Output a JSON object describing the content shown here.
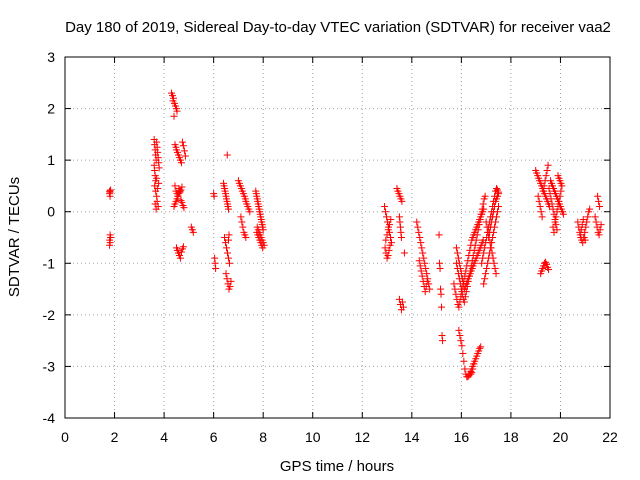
{
  "chart_data": {
    "type": "scatter",
    "title": "Day 180 of 2019, Sidereal Day-to-day VTEC variation (SDTVAR) for receiver vaa2",
    "xlabel": "GPS time / hours",
    "ylabel": "SDTVAR / TECUs",
    "xlim": [
      0,
      22
    ],
    "ylim": [
      -4,
      3
    ],
    "xticks": [
      "0",
      "2",
      "4",
      "6",
      "8",
      "10",
      "12",
      "14",
      "16",
      "18",
      "20",
      "22"
    ],
    "yticks": [
      "-4",
      "-3",
      "-2",
      "-1",
      "0",
      "1",
      "2",
      "3"
    ],
    "grid": true,
    "marker": "+",
    "series": [
      {
        "name": "SDTVAR",
        "color": "#ff0000",
        "x": [
          1.8,
          1.8,
          1.82,
          1.82,
          1.84,
          1.8,
          1.82,
          1.84,
          1.8,
          1.82,
          3.6,
          3.62,
          3.64,
          3.66,
          3.68,
          3.6,
          3.62,
          3.64,
          3.66,
          3.7,
          3.72,
          3.74,
          3.76,
          3.78,
          3.8,
          3.62,
          3.66,
          3.7,
          3.74,
          3.78,
          3.64,
          3.68,
          3.72,
          3.76,
          3.7,
          4.3,
          4.34,
          4.38,
          4.42,
          4.46,
          4.5,
          4.52,
          4.36,
          4.4,
          4.44,
          4.48,
          4.5,
          4.54,
          4.58,
          4.62,
          4.66,
          4.7,
          4.74,
          4.78,
          4.82,
          4.86,
          4.44,
          4.48,
          4.52,
          4.56,
          4.6,
          4.64,
          4.68,
          4.72,
          4.5,
          4.54,
          4.58,
          4.62,
          4.66,
          4.7,
          4.74,
          4.78,
          4.4,
          4.44,
          4.48,
          4.52,
          4.56,
          4.6,
          4.64,
          4.68,
          4.72,
          4.76,
          4.8,
          5.1,
          5.14,
          5.18,
          6.0,
          6.02,
          6.04,
          6.06,
          6.08,
          6.4,
          6.42,
          6.44,
          6.46,
          6.48,
          6.5,
          6.52,
          6.54,
          6.56,
          6.58,
          6.6,
          6.44,
          6.48,
          6.52,
          6.56,
          6.6,
          6.64,
          6.5,
          6.54,
          6.58,
          6.62,
          6.66,
          6.7,
          6.55,
          6.6,
          6.62,
          7.0,
          7.04,
          7.08,
          7.12,
          7.16,
          7.2,
          7.24,
          7.28,
          7.3,
          7.34,
          7.38,
          7.42,
          7.46,
          7.1,
          7.14,
          7.18,
          7.22,
          7.26,
          7.3,
          7.7,
          7.72,
          7.74,
          7.76,
          7.78,
          7.8,
          7.82,
          7.84,
          7.86,
          7.88,
          7.9,
          7.92,
          7.94,
          7.96,
          7.98,
          8.0,
          7.74,
          7.78,
          7.82,
          7.86,
          7.9,
          7.94,
          7.98,
          7.76,
          7.8,
          7.84,
          7.88,
          7.92,
          7.96,
          8.0,
          8.04,
          12.9,
          12.94,
          12.98,
          13.02,
          13.06,
          13.1,
          13.14,
          13.18,
          12.92,
          12.96,
          13.0,
          13.04,
          13.08,
          13.12,
          12.95,
          13.0,
          13.05,
          13.1,
          13.15,
          13.4,
          13.44,
          13.48,
          13.52,
          13.56,
          13.6,
          13.5,
          13.52,
          13.54,
          13.56,
          13.58,
          13.5,
          13.54,
          13.58,
          13.62,
          13.66,
          13.7,
          14.2,
          14.24,
          14.28,
          14.32,
          14.36,
          14.4,
          14.44,
          14.48,
          14.52,
          14.56,
          14.6,
          14.64,
          14.68,
          14.72,
          14.3,
          14.34,
          14.38,
          14.42,
          14.46,
          14.5,
          14.54,
          14.58,
          14.62,
          15.1,
          15.12,
          15.14,
          15.16,
          15.18,
          15.2,
          15.22,
          15.24,
          15.7,
          15.74,
          15.78,
          15.82,
          15.86,
          15.9,
          15.94,
          15.98,
          16.02,
          16.06,
          16.1,
          16.14,
          16.18,
          16.22,
          16.26,
          16.3,
          16.34,
          16.38,
          16.42,
          16.46,
          16.5,
          16.54,
          16.58,
          16.62,
          16.66,
          16.7,
          16.74,
          16.78,
          16.82,
          16.86,
          16.9,
          15.8,
          15.84,
          15.88,
          15.92,
          15.96,
          16.0,
          16.04,
          16.08,
          16.12,
          16.16,
          16.2,
          16.24,
          16.28,
          16.32,
          16.36,
          16.4,
          16.44,
          16.48,
          16.52,
          16.56,
          16.6,
          16.64,
          16.68,
          16.72,
          16.76,
          16.8,
          16.84,
          16.88,
          16.92,
          16.96,
          15.8,
          15.84,
          15.88,
          15.92,
          15.96,
          16.0,
          16.04,
          16.08,
          16.12,
          16.16,
          16.2,
          16.24,
          16.28,
          16.32,
          16.36,
          16.4,
          16.44,
          16.48,
          16.52,
          16.56,
          16.6,
          16.64,
          16.68,
          16.72,
          16.76,
          16.8,
          16.84,
          16.88,
          15.9,
          15.94,
          15.98,
          16.02,
          16.06,
          16.1,
          16.14,
          16.18,
          16.22,
          16.26,
          16.3,
          16.34,
          16.38,
          16.42,
          16.46,
          16.5,
          16.3,
          16.34,
          16.38,
          16.42,
          16.46,
          16.5,
          16.54,
          16.58,
          16.62,
          16.66,
          16.7,
          16.74,
          16.78,
          16.82,
          16.86,
          16.9,
          16.94,
          16.98,
          17.02,
          17.06,
          17.1,
          17.14,
          17.18,
          17.22,
          17.26,
          17.3,
          17.34,
          17.38,
          17.42,
          17.46,
          17.5,
          16.9,
          16.94,
          16.98,
          17.02,
          17.06,
          17.1,
          17.14,
          17.18,
          17.22,
          17.26,
          17.3,
          17.34,
          17.38,
          17.42,
          17.46,
          17.5,
          17.1,
          17.14,
          17.18,
          17.22,
          17.26,
          17.3,
          17.34,
          17.38,
          17.42,
          17.46,
          17.5,
          17.0,
          17.04,
          17.08,
          17.12,
          17.16,
          17.2,
          17.24,
          17.28,
          17.32,
          17.36,
          17.4,
          19.0,
          19.04,
          19.08,
          19.12,
          19.16,
          19.2,
          19.24,
          19.28,
          19.32,
          19.36,
          19.4,
          19.44,
          19.48,
          19.52,
          19.56,
          19.6,
          19.64,
          19.68,
          19.72,
          19.76,
          19.8,
          19.84,
          19.88,
          19.92,
          19.96,
          20.0,
          20.04,
          20.08,
          20.12,
          19.1,
          19.14,
          19.18,
          19.22,
          19.26,
          19.3,
          19.34,
          19.38,
          19.42,
          19.46,
          19.5,
          19.54,
          19.58,
          19.62,
          19.66,
          19.7,
          19.74,
          19.78,
          19.82,
          19.86,
          19.9,
          19.94,
          19.98,
          20.02,
          19.2,
          19.24,
          19.28,
          19.32,
          19.36,
          19.4,
          19.44,
          19.48,
          19.52,
          19.7,
          19.74,
          19.78,
          19.82,
          19.86,
          19.9,
          19.94,
          19.98,
          20.02,
          20.06,
          20.7,
          20.74,
          20.78,
          20.82,
          20.86,
          20.9,
          20.94,
          20.98,
          21.02,
          21.06,
          21.1,
          21.14,
          21.18,
          20.8,
          20.84,
          20.88,
          20.92,
          20.96,
          21.0,
          21.4,
          21.44,
          21.48,
          21.52,
          21.56,
          21.6,
          21.64,
          21.5,
          21.54,
          21.58
        ],
        "y": [
          0.4,
          0.35,
          0.3,
          0.38,
          0.42,
          -0.55,
          -0.6,
          -0.5,
          -0.65,
          -0.45,
          1.4,
          1.3,
          1.2,
          1.1,
          1.0,
          0.9,
          0.8,
          0.7,
          0.6,
          1.35,
          1.25,
          1.15,
          1.05,
          0.95,
          0.85,
          0.5,
          0.4,
          0.3,
          0.45,
          0.55,
          0.15,
          0.05,
          0.2,
          0.1,
          0.65,
          2.3,
          2.25,
          2.2,
          2.1,
          2.05,
          2.0,
          1.95,
          2.15,
          1.85,
          1.3,
          1.25,
          1.2,
          1.15,
          1.1,
          1.05,
          1.0,
          0.95,
          1.35,
          1.28,
          1.18,
          1.08,
          0.5,
          0.4,
          0.35,
          0.3,
          0.45,
          0.38,
          0.42,
          0.48,
          -0.7,
          -0.75,
          -0.8,
          -0.85,
          -0.9,
          -0.78,
          -0.72,
          -0.68,
          0.1,
          0.15,
          0.2,
          0.25,
          0.3,
          0.35,
          0.4,
          0.22,
          0.18,
          0.12,
          0.08,
          -0.3,
          -0.35,
          -0.4,
          0.35,
          0.3,
          -0.9,
          -1.0,
          -1.1,
          0.55,
          0.5,
          0.45,
          0.4,
          0.35,
          0.3,
          0.25,
          0.2,
          0.15,
          0.1,
          0.05,
          -0.5,
          -0.6,
          -0.7,
          -0.8,
          -0.9,
          -1.0,
          -1.2,
          -1.3,
          -1.4,
          -1.5,
          -1.45,
          -1.35,
          1.1,
          -0.55,
          -0.45,
          0.6,
          0.55,
          0.5,
          0.45,
          0.4,
          0.35,
          0.3,
          0.25,
          0.2,
          0.15,
          0.1,
          0.05,
          0.0,
          -0.1,
          -0.2,
          -0.3,
          -0.4,
          -0.45,
          -0.5,
          0.4,
          0.35,
          0.3,
          0.25,
          0.2,
          0.15,
          0.1,
          0.05,
          0.0,
          -0.05,
          -0.1,
          -0.15,
          -0.2,
          -0.25,
          -0.3,
          -0.35,
          -0.4,
          -0.45,
          -0.5,
          -0.55,
          -0.6,
          -0.65,
          -0.7,
          -0.3,
          -0.35,
          -0.4,
          -0.45,
          -0.5,
          -0.55,
          -0.6,
          -0.65,
          0.1,
          0.0,
          -0.1,
          -0.2,
          -0.3,
          -0.4,
          -0.5,
          -0.6,
          -0.7,
          -0.8,
          -0.9,
          -0.85,
          -0.75,
          -0.65,
          -0.55,
          -0.45,
          -0.35,
          -0.25,
          -0.15,
          0.45,
          0.4,
          0.35,
          0.3,
          0.25,
          0.2,
          -0.1,
          -0.2,
          -0.3,
          -0.4,
          -0.5,
          -1.7,
          -1.8,
          -1.9,
          -1.75,
          -1.85,
          -0.8,
          -0.2,
          -0.3,
          -0.4,
          -0.5,
          -0.6,
          -0.7,
          -0.8,
          -0.9,
          -1.0,
          -1.1,
          -1.2,
          -1.3,
          -1.4,
          -1.5,
          -0.95,
          -1.05,
          -1.15,
          -1.25,
          -1.35,
          -1.45,
          -1.55,
          -1.45,
          -1.35,
          -0.45,
          -1.0,
          -1.1,
          -1.5,
          -1.6,
          -1.85,
          -2.4,
          -2.5,
          -1.4,
          -1.5,
          -1.6,
          -1.7,
          -1.8,
          -1.85,
          -1.75,
          -1.65,
          -1.55,
          -1.45,
          -1.35,
          -1.25,
          -1.15,
          -1.05,
          -0.95,
          -0.85,
          -0.75,
          -0.65,
          -0.55,
          -0.5,
          -0.45,
          -0.4,
          -0.35,
          -0.3,
          -0.25,
          -0.2,
          -0.15,
          -0.1,
          -0.05,
          0.0,
          0.05,
          -1.0,
          -1.1,
          -1.2,
          -1.3,
          -1.4,
          -1.5,
          -1.6,
          -1.7,
          -1.75,
          -1.65,
          -1.55,
          -1.45,
          -1.35,
          -1.25,
          -1.15,
          -1.05,
          -0.95,
          -0.85,
          -0.75,
          -0.65,
          -0.55,
          -0.45,
          -0.35,
          -0.25,
          -0.15,
          -0.05,
          0.05,
          0.15,
          0.25,
          0.3,
          -0.7,
          -0.8,
          -0.9,
          -1.0,
          -1.1,
          -1.2,
          -1.3,
          -1.4,
          -1.5,
          -1.45,
          -1.4,
          -1.35,
          -1.3,
          -1.25,
          -1.2,
          -1.15,
          -1.1,
          -1.05,
          -1.0,
          -0.95,
          -0.9,
          -0.85,
          -0.8,
          -0.75,
          -0.7,
          -0.65,
          -0.6,
          -0.55,
          -2.3,
          -2.4,
          -2.5,
          -2.6,
          -2.75,
          -2.9,
          -3.05,
          -3.15,
          -3.2,
          -3.2,
          -3.18,
          -3.15,
          -3.1,
          -3.05,
          -3.0,
          -2.95,
          -3.15,
          -3.15,
          -3.15,
          -3.12,
          -3.05,
          -2.95,
          -2.9,
          -2.85,
          -2.8,
          -2.75,
          -2.7,
          -2.65,
          -2.62,
          -1.0,
          -0.9,
          -0.8,
          -0.7,
          -0.6,
          -0.5,
          -0.4,
          -0.3,
          -0.2,
          -0.1,
          0.0,
          0.1,
          0.2,
          0.3,
          0.4,
          0.45,
          0.42,
          0.38,
          -1.4,
          -1.3,
          -1.2,
          -1.1,
          -1.0,
          -0.9,
          -0.8,
          -0.7,
          -0.6,
          -0.5,
          -0.4,
          -0.3,
          -0.2,
          -0.1,
          0.0,
          0.1,
          -0.5,
          -0.4,
          -0.3,
          -0.2,
          -0.1,
          0.0,
          0.1,
          0.2,
          0.25,
          0.3,
          0.35,
          -0.2,
          -0.3,
          -0.4,
          -0.5,
          -0.6,
          -0.7,
          -0.8,
          -0.9,
          -1.0,
          -1.1,
          -1.2,
          0.8,
          0.75,
          0.7,
          0.65,
          0.6,
          0.55,
          0.5,
          0.45,
          0.4,
          0.35,
          0.3,
          0.25,
          0.2,
          0.15,
          0.1,
          0.6,
          0.55,
          0.5,
          0.45,
          0.4,
          0.35,
          0.3,
          0.25,
          0.2,
          0.15,
          0.1,
          0.05,
          0.0,
          -0.05,
          0.3,
          0.2,
          0.1,
          0.0,
          -0.1,
          0.4,
          0.5,
          0.6,
          0.7,
          0.8,
          0.9,
          0.45,
          0.35,
          0.25,
          0.15,
          0.05,
          -0.05,
          -0.15,
          -0.25,
          -0.35,
          0.7,
          0.65,
          0.6,
          0.55,
          -1.2,
          -1.15,
          -1.1,
          -1.05,
          -1.0,
          -0.98,
          -1.02,
          -1.08,
          -1.12,
          -0.3,
          -0.4,
          -0.2,
          -0.1,
          0.0,
          0.1,
          0.2,
          0.3,
          0.4,
          0.5,
          -0.2,
          -0.3,
          -0.4,
          -0.5,
          -0.55,
          -0.6,
          -0.5,
          -0.4,
          -0.3,
          -0.2,
          -0.1,
          0.0,
          0.05,
          -0.45,
          -0.35,
          -0.25,
          -0.15,
          -0.5,
          -0.55,
          -0.1,
          -0.2,
          -0.3,
          -0.4,
          -0.45,
          -0.35,
          -0.25,
          0.3,
          0.2,
          0.1
        ]
      }
    ]
  }
}
